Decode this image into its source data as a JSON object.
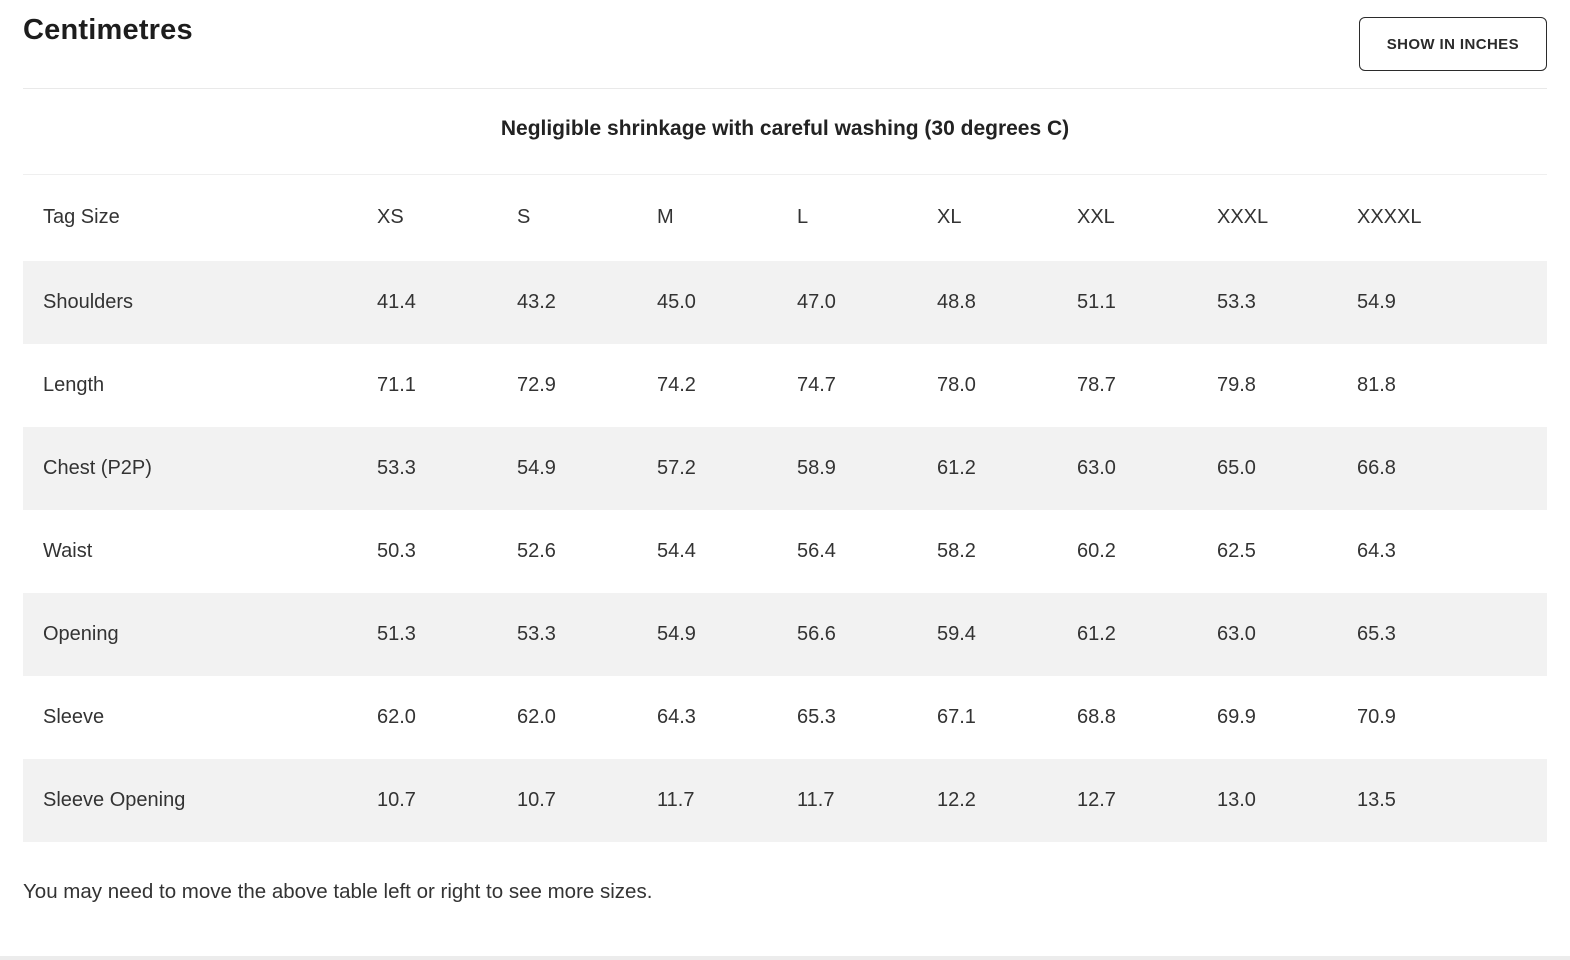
{
  "header": {
    "title": "Centimetres",
    "toggle_button_label": "SHOW IN INCHES"
  },
  "subtitle": "Negligible shrinkage with careful washing (30 degrees C)",
  "table": {
    "columns": [
      "Tag Size",
      "XS",
      "S",
      "M",
      "L",
      "XL",
      "XXL",
      "XXXL",
      "XXXXL"
    ],
    "rows": [
      {
        "label": "Shoulders",
        "values": [
          "41.4",
          "43.2",
          "45.0",
          "47.0",
          "48.8",
          "51.1",
          "53.3",
          "54.9"
        ]
      },
      {
        "label": "Length",
        "values": [
          "71.1",
          "72.9",
          "74.2",
          "74.7",
          "78.0",
          "78.7",
          "79.8",
          "81.8"
        ]
      },
      {
        "label": "Chest (P2P)",
        "values": [
          "53.3",
          "54.9",
          "57.2",
          "58.9",
          "61.2",
          "63.0",
          "65.0",
          "66.8"
        ]
      },
      {
        "label": "Waist",
        "values": [
          "50.3",
          "52.6",
          "54.4",
          "56.4",
          "58.2",
          "60.2",
          "62.5",
          "64.3"
        ]
      },
      {
        "label": "Opening",
        "values": [
          "51.3",
          "53.3",
          "54.9",
          "56.6",
          "59.4",
          "61.2",
          "63.0",
          "65.3"
        ]
      },
      {
        "label": "Sleeve",
        "values": [
          "62.0",
          "62.0",
          "64.3",
          "65.3",
          "67.1",
          "68.8",
          "69.9",
          "70.9"
        ]
      },
      {
        "label": "Sleeve Opening",
        "values": [
          "10.7",
          "10.7",
          "11.7",
          "11.7",
          "12.2",
          "12.7",
          "13.0",
          "13.5"
        ]
      }
    ]
  },
  "footer_note": "You may need to move the above table left or right to see more sizes.",
  "colors": {
    "row_alt_bg": "#f2f2f2",
    "text": "#333333",
    "heading": "#1d1d1d",
    "divider": "#e9e9e9",
    "button_border": "#2b2b2b"
  }
}
